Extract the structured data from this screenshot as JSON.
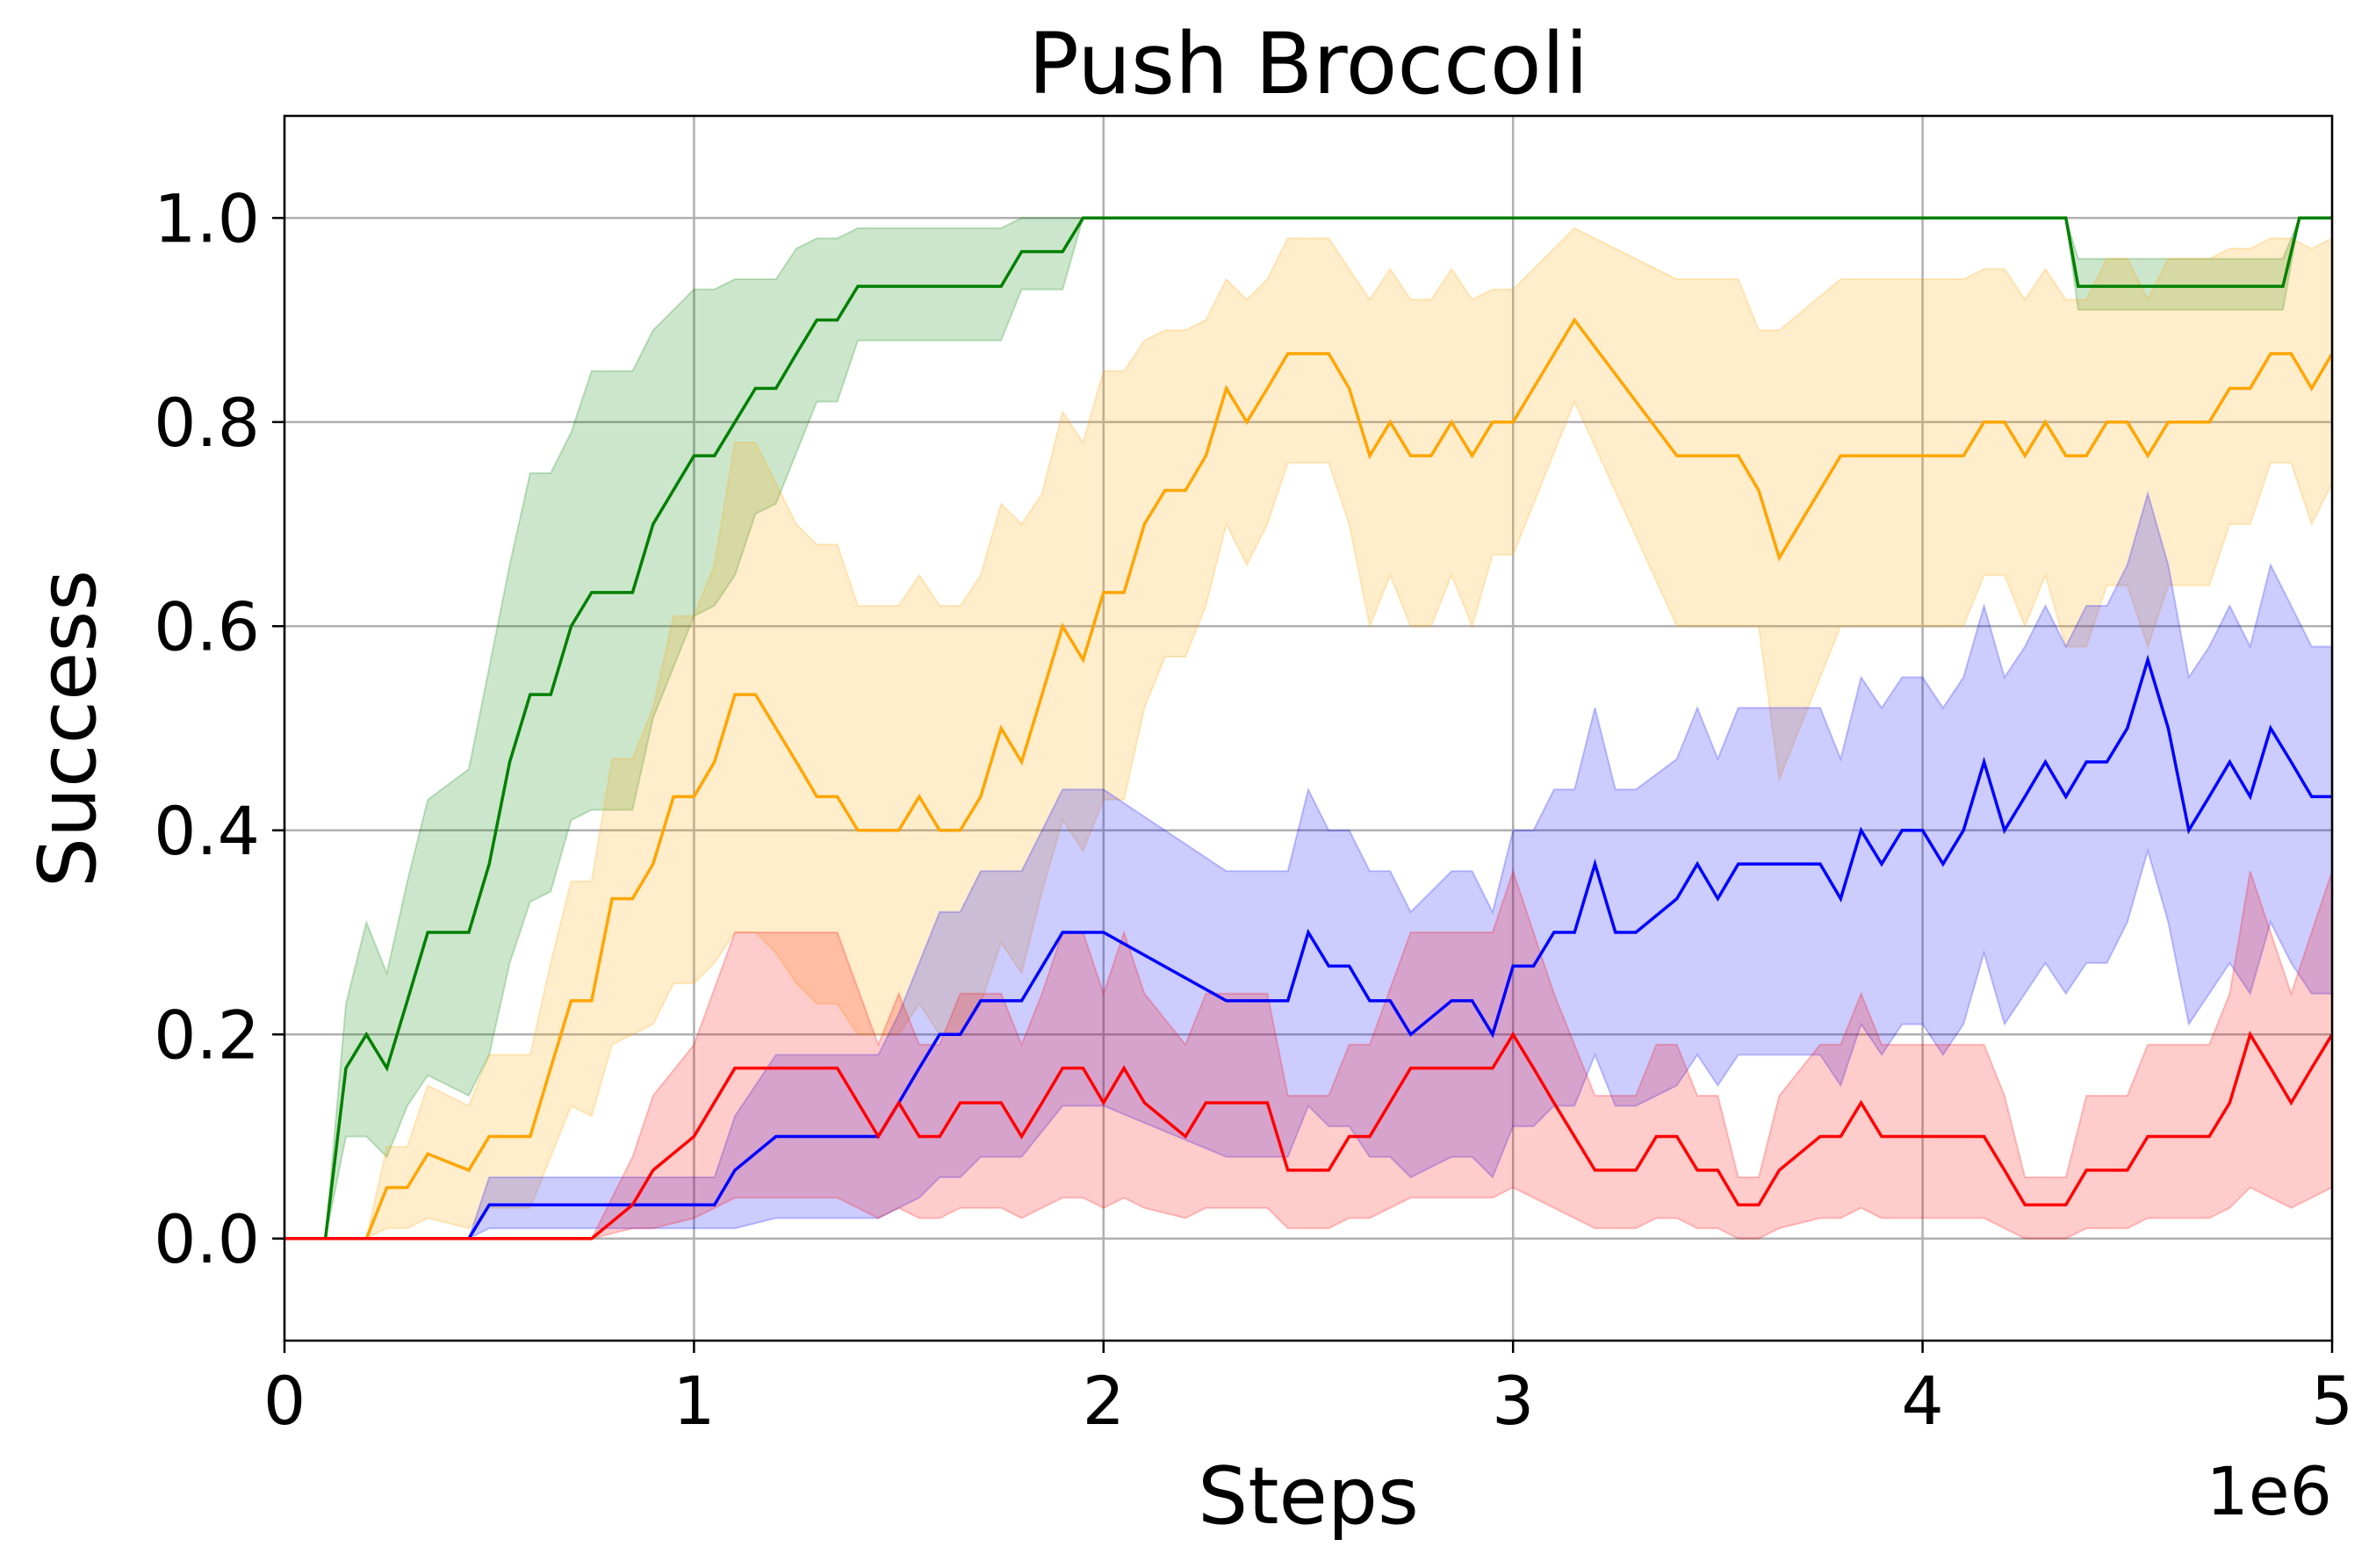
{
  "chart_data": {
    "type": "line",
    "title": "Push Broccoli",
    "xlabel": "Steps",
    "ylabel": "Success",
    "x_offset_text": "1e6",
    "xlim": [
      0,
      5
    ],
    "ylim": [
      -0.1,
      1.1
    ],
    "x_ticks": [
      0,
      1,
      2,
      3,
      4,
      5
    ],
    "x_tick_labels": [
      "0",
      "1",
      "2",
      "3",
      "4",
      "5"
    ],
    "y_ticks": [
      0.0,
      0.2,
      0.4,
      0.6,
      0.8,
      1.0
    ],
    "y_tick_labels": [
      "0.0",
      "0.2",
      "0.4",
      "0.6",
      "0.8",
      "1.0"
    ],
    "grid": true,
    "series": [
      {
        "color": "#008000",
        "x": [
          0,
          0.1,
          0.15,
          0.2,
          0.25,
          0.3,
          0.35,
          0.45,
          0.5,
          0.55,
          0.6,
          0.65,
          0.7,
          0.75,
          0.85,
          0.9,
          1.0,
          1.05,
          1.1,
          1.15,
          1.2,
          1.25,
          1.3,
          1.35,
          1.4,
          1.45,
          1.5,
          1.55,
          1.6,
          1.65,
          1.7,
          1.75,
          1.8,
          1.85,
          1.9,
          1.95,
          2.0,
          2.5,
          3.0,
          3.5,
          4.0,
          4.35,
          4.38,
          4.45,
          4.5,
          4.6,
          4.7,
          4.8,
          4.88,
          4.92,
          5.0
        ],
        "values": [
          0,
          0,
          0.167,
          0.2,
          0.167,
          0.233,
          0.3,
          0.3,
          0.367,
          0.467,
          0.533,
          0.533,
          0.6,
          0.633,
          0.633,
          0.7,
          0.767,
          0.767,
          0.8,
          0.833,
          0.833,
          0.867,
          0.9,
          0.9,
          0.933,
          0.933,
          0.933,
          0.933,
          0.933,
          0.933,
          0.933,
          0.933,
          0.967,
          0.967,
          0.967,
          1.0,
          1.0,
          1.0,
          1.0,
          1.0,
          1.0,
          1.0,
          0.933,
          0.933,
          0.933,
          0.933,
          0.933,
          0.933,
          0.933,
          1.0,
          1.0
        ],
        "lower": [
          0,
          0,
          0.1,
          0.1,
          0.08,
          0.13,
          0.16,
          0.14,
          0.18,
          0.27,
          0.33,
          0.34,
          0.41,
          0.42,
          0.42,
          0.51,
          0.61,
          0.62,
          0.65,
          0.71,
          0.72,
          0.77,
          0.82,
          0.82,
          0.88,
          0.88,
          0.88,
          0.88,
          0.88,
          0.88,
          0.88,
          0.88,
          0.93,
          0.93,
          0.93,
          1.0,
          1.0,
          1.0,
          1.0,
          1.0,
          1.0,
          1.0,
          0.91,
          0.91,
          0.91,
          0.91,
          0.91,
          0.91,
          0.91,
          1.0,
          1.0
        ],
        "upper": [
          0,
          0,
          0.23,
          0.31,
          0.26,
          0.35,
          0.43,
          0.46,
          0.56,
          0.66,
          0.75,
          0.75,
          0.79,
          0.85,
          0.85,
          0.89,
          0.93,
          0.93,
          0.94,
          0.94,
          0.94,
          0.97,
          0.98,
          0.98,
          0.99,
          0.99,
          0.99,
          0.99,
          0.99,
          0.99,
          0.99,
          0.99,
          1.0,
          1.0,
          1.0,
          1.0,
          1.0,
          1.0,
          1.0,
          1.0,
          1.0,
          1.0,
          0.96,
          0.96,
          0.96,
          0.96,
          0.96,
          0.96,
          0.96,
          1.0,
          1.0
        ]
      },
      {
        "color": "#ffa500",
        "x": [
          0,
          0.2,
          0.25,
          0.3,
          0.35,
          0.45,
          0.5,
          0.6,
          0.65,
          0.7,
          0.75,
          0.8,
          0.85,
          0.9,
          0.95,
          1.0,
          1.05,
          1.1,
          1.15,
          1.2,
          1.25,
          1.3,
          1.35,
          1.4,
          1.45,
          1.5,
          1.55,
          1.6,
          1.65,
          1.7,
          1.75,
          1.8,
          1.85,
          1.9,
          1.95,
          2.0,
          2.05,
          2.1,
          2.15,
          2.2,
          2.25,
          2.3,
          2.35,
          2.4,
          2.45,
          2.55,
          2.6,
          2.65,
          2.7,
          2.75,
          2.8,
          2.85,
          2.9,
          2.95,
          3.0,
          3.15,
          3.4,
          3.55,
          3.6,
          3.65,
          3.8,
          4.1,
          4.15,
          4.2,
          4.25,
          4.3,
          4.35,
          4.4,
          4.45,
          4.5,
          4.55,
          4.6,
          4.7,
          4.75,
          4.8,
          4.85,
          4.9,
          4.95,
          5.0
        ],
        "values": [
          0,
          0,
          0.05,
          0.05,
          0.083,
          0.067,
          0.1,
          0.1,
          0.167,
          0.233,
          0.233,
          0.333,
          0.333,
          0.367,
          0.433,
          0.433,
          0.467,
          0.533,
          0.533,
          0.5,
          0.467,
          0.433,
          0.433,
          0.4,
          0.4,
          0.4,
          0.433,
          0.4,
          0.4,
          0.433,
          0.5,
          0.467,
          0.533,
          0.6,
          0.567,
          0.633,
          0.633,
          0.7,
          0.733,
          0.733,
          0.767,
          0.833,
          0.8,
          0.833,
          0.867,
          0.867,
          0.833,
          0.767,
          0.8,
          0.767,
          0.767,
          0.8,
          0.767,
          0.8,
          0.8,
          0.9,
          0.767,
          0.767,
          0.733,
          0.667,
          0.767,
          0.767,
          0.8,
          0.8,
          0.767,
          0.8,
          0.767,
          0.767,
          0.8,
          0.8,
          0.767,
          0.8,
          0.8,
          0.833,
          0.833,
          0.867,
          0.867,
          0.833,
          0.867
        ],
        "lower": [
          0,
          0,
          0.01,
          0.01,
          0.02,
          0.01,
          0.03,
          0.03,
          0.08,
          0.13,
          0.12,
          0.19,
          0.2,
          0.21,
          0.25,
          0.25,
          0.27,
          0.3,
          0.3,
          0.28,
          0.25,
          0.23,
          0.23,
          0.2,
          0.2,
          0.2,
          0.23,
          0.2,
          0.2,
          0.23,
          0.29,
          0.26,
          0.34,
          0.41,
          0.38,
          0.43,
          0.43,
          0.52,
          0.57,
          0.57,
          0.62,
          0.7,
          0.66,
          0.7,
          0.76,
          0.76,
          0.7,
          0.6,
          0.65,
          0.6,
          0.6,
          0.65,
          0.6,
          0.67,
          0.67,
          0.82,
          0.6,
          0.6,
          0.6,
          0.45,
          0.6,
          0.6,
          0.65,
          0.65,
          0.6,
          0.65,
          0.58,
          0.58,
          0.64,
          0.64,
          0.58,
          0.64,
          0.64,
          0.7,
          0.7,
          0.76,
          0.76,
          0.7,
          0.74
        ],
        "upper": [
          0,
          0,
          0.09,
          0.09,
          0.15,
          0.13,
          0.18,
          0.18,
          0.27,
          0.35,
          0.35,
          0.47,
          0.47,
          0.52,
          0.61,
          0.61,
          0.66,
          0.78,
          0.78,
          0.74,
          0.7,
          0.68,
          0.68,
          0.62,
          0.62,
          0.62,
          0.65,
          0.62,
          0.62,
          0.65,
          0.72,
          0.7,
          0.73,
          0.81,
          0.78,
          0.85,
          0.85,
          0.88,
          0.89,
          0.89,
          0.9,
          0.94,
          0.92,
          0.94,
          0.98,
          0.98,
          0.95,
          0.92,
          0.95,
          0.92,
          0.92,
          0.95,
          0.92,
          0.93,
          0.93,
          0.99,
          0.94,
          0.94,
          0.89,
          0.89,
          0.94,
          0.94,
          0.95,
          0.95,
          0.92,
          0.95,
          0.92,
          0.92,
          0.96,
          0.96,
          0.92,
          0.96,
          0.96,
          0.97,
          0.97,
          0.98,
          0.98,
          0.97,
          0.98
        ]
      },
      {
        "color": "#0000ff",
        "x": [
          0,
          0.45,
          0.5,
          0.95,
          1.05,
          1.1,
          1.2,
          1.45,
          1.5,
          1.55,
          1.6,
          1.65,
          1.7,
          1.8,
          1.9,
          2.0,
          2.3,
          2.35,
          2.45,
          2.5,
          2.55,
          2.6,
          2.65,
          2.7,
          2.75,
          2.85,
          2.9,
          2.95,
          3.0,
          3.05,
          3.1,
          3.15,
          3.2,
          3.25,
          3.3,
          3.4,
          3.45,
          3.5,
          3.55,
          3.6,
          3.7,
          3.75,
          3.8,
          3.85,
          3.9,
          3.95,
          4.0,
          4.05,
          4.1,
          4.15,
          4.2,
          4.25,
          4.3,
          4.35,
          4.4,
          4.45,
          4.5,
          4.55,
          4.6,
          4.65,
          4.7,
          4.75,
          4.8,
          4.85,
          4.9,
          4.95,
          5.0
        ],
        "values": [
          0,
          0,
          0.033,
          0.033,
          0.033,
          0.067,
          0.1,
          0.1,
          0.133,
          0.167,
          0.2,
          0.2,
          0.233,
          0.233,
          0.3,
          0.3,
          0.233,
          0.233,
          0.233,
          0.3,
          0.267,
          0.267,
          0.233,
          0.233,
          0.2,
          0.233,
          0.233,
          0.2,
          0.267,
          0.267,
          0.3,
          0.3,
          0.367,
          0.3,
          0.3,
          0.333,
          0.367,
          0.333,
          0.367,
          0.367,
          0.367,
          0.367,
          0.333,
          0.4,
          0.367,
          0.4,
          0.4,
          0.367,
          0.4,
          0.467,
          0.4,
          0.433,
          0.467,
          0.433,
          0.467,
          0.467,
          0.5,
          0.567,
          0.5,
          0.4,
          0.433,
          0.467,
          0.433,
          0.5,
          0.467,
          0.433,
          0.433
        ],
        "lower": [
          0,
          0,
          0.01,
          0.01,
          0.01,
          0.01,
          0.02,
          0.02,
          0.03,
          0.04,
          0.06,
          0.06,
          0.08,
          0.08,
          0.13,
          0.13,
          0.08,
          0.08,
          0.08,
          0.13,
          0.11,
          0.11,
          0.08,
          0.08,
          0.06,
          0.08,
          0.08,
          0.06,
          0.11,
          0.11,
          0.13,
          0.13,
          0.18,
          0.13,
          0.13,
          0.15,
          0.18,
          0.15,
          0.18,
          0.18,
          0.18,
          0.18,
          0.15,
          0.21,
          0.18,
          0.21,
          0.21,
          0.18,
          0.21,
          0.28,
          0.21,
          0.24,
          0.27,
          0.24,
          0.27,
          0.27,
          0.31,
          0.38,
          0.31,
          0.21,
          0.24,
          0.27,
          0.24,
          0.31,
          0.27,
          0.24,
          0.24
        ],
        "upper": [
          0,
          0,
          0.06,
          0.06,
          0.06,
          0.12,
          0.18,
          0.18,
          0.22,
          0.27,
          0.32,
          0.32,
          0.36,
          0.36,
          0.44,
          0.44,
          0.36,
          0.36,
          0.36,
          0.44,
          0.4,
          0.4,
          0.36,
          0.36,
          0.32,
          0.36,
          0.36,
          0.32,
          0.4,
          0.4,
          0.44,
          0.44,
          0.52,
          0.44,
          0.44,
          0.47,
          0.52,
          0.47,
          0.52,
          0.52,
          0.52,
          0.52,
          0.47,
          0.55,
          0.52,
          0.55,
          0.55,
          0.52,
          0.55,
          0.62,
          0.55,
          0.58,
          0.62,
          0.58,
          0.62,
          0.62,
          0.66,
          0.73,
          0.66,
          0.55,
          0.58,
          0.62,
          0.58,
          0.66,
          0.62,
          0.58,
          0.58
        ]
      },
      {
        "color": "#ff0000",
        "x": [
          0,
          0.75,
          0.85,
          0.9,
          1.0,
          1.1,
          1.35,
          1.45,
          1.5,
          1.55,
          1.6,
          1.65,
          1.75,
          1.8,
          1.85,
          1.9,
          1.95,
          2.0,
          2.05,
          2.1,
          2.2,
          2.25,
          2.3,
          2.4,
          2.45,
          2.55,
          2.6,
          2.65,
          2.75,
          2.85,
          2.9,
          2.95,
          3.0,
          3.05,
          3.1,
          3.2,
          3.3,
          3.35,
          3.4,
          3.45,
          3.5,
          3.55,
          3.6,
          3.65,
          3.75,
          3.8,
          3.85,
          3.9,
          3.95,
          4.0,
          4.05,
          4.15,
          4.2,
          4.25,
          4.3,
          4.35,
          4.4,
          4.5,
          4.55,
          4.6,
          4.7,
          4.75,
          4.8,
          4.85,
          4.9,
          4.95,
          5.0
        ],
        "values": [
          0,
          0,
          0.033,
          0.067,
          0.1,
          0.167,
          0.167,
          0.1,
          0.133,
          0.1,
          0.1,
          0.133,
          0.133,
          0.1,
          0.133,
          0.167,
          0.167,
          0.133,
          0.167,
          0.133,
          0.1,
          0.133,
          0.133,
          0.133,
          0.067,
          0.067,
          0.1,
          0.1,
          0.167,
          0.167,
          0.167,
          0.167,
          0.2,
          0.167,
          0.133,
          0.067,
          0.067,
          0.1,
          0.1,
          0.067,
          0.067,
          0.033,
          0.033,
          0.067,
          0.1,
          0.1,
          0.133,
          0.1,
          0.1,
          0.1,
          0.1,
          0.1,
          0.067,
          0.033,
          0.033,
          0.033,
          0.067,
          0.067,
          0.1,
          0.1,
          0.1,
          0.133,
          0.2,
          0.167,
          0.133,
          0.167,
          0.2
        ],
        "lower": [
          0,
          0,
          0.01,
          0.01,
          0.02,
          0.04,
          0.04,
          0.02,
          0.03,
          0.02,
          0.02,
          0.03,
          0.03,
          0.02,
          0.03,
          0.04,
          0.04,
          0.03,
          0.04,
          0.03,
          0.02,
          0.03,
          0.03,
          0.03,
          0.01,
          0.01,
          0.02,
          0.02,
          0.04,
          0.04,
          0.04,
          0.04,
          0.05,
          0.04,
          0.03,
          0.01,
          0.01,
          0.02,
          0.02,
          0.01,
          0.01,
          0.0,
          0.0,
          0.01,
          0.02,
          0.02,
          0.03,
          0.02,
          0.02,
          0.02,
          0.02,
          0.02,
          0.01,
          0.0,
          0.0,
          0.0,
          0.01,
          0.01,
          0.02,
          0.02,
          0.02,
          0.03,
          0.05,
          0.04,
          0.03,
          0.04,
          0.05
        ],
        "upper": [
          0,
          0,
          0.08,
          0.14,
          0.19,
          0.3,
          0.3,
          0.19,
          0.24,
          0.19,
          0.19,
          0.24,
          0.24,
          0.19,
          0.24,
          0.3,
          0.3,
          0.24,
          0.3,
          0.24,
          0.19,
          0.24,
          0.24,
          0.24,
          0.14,
          0.14,
          0.19,
          0.19,
          0.3,
          0.3,
          0.3,
          0.3,
          0.36,
          0.3,
          0.24,
          0.14,
          0.14,
          0.19,
          0.19,
          0.14,
          0.14,
          0.06,
          0.06,
          0.14,
          0.19,
          0.19,
          0.24,
          0.19,
          0.19,
          0.19,
          0.19,
          0.19,
          0.14,
          0.06,
          0.06,
          0.06,
          0.14,
          0.14,
          0.19,
          0.19,
          0.19,
          0.24,
          0.36,
          0.3,
          0.24,
          0.3,
          0.36
        ]
      }
    ]
  }
}
